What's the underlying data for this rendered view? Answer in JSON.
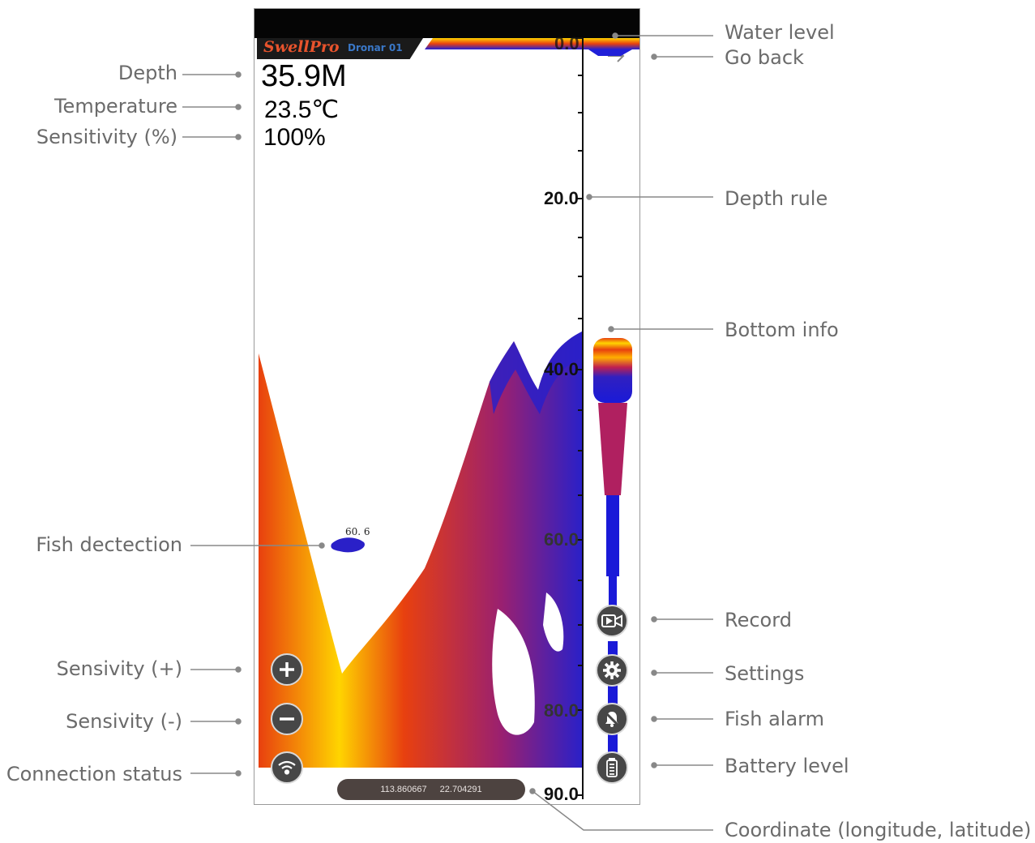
{
  "app": {
    "brand": "SwellPro",
    "device": "Dronar 01"
  },
  "readings": {
    "depth": "35.9M",
    "temperature": "23.5℃",
    "sensitivity": "100%"
  },
  "ruler": {
    "ticks": [
      "0.0",
      "20.0",
      "40.0",
      "60.0",
      "80.0",
      "90.0"
    ]
  },
  "fish": {
    "depth_label": "60. 6"
  },
  "coordinates": {
    "longitude": "113.860667",
    "latitude": "22.704291"
  },
  "annotations": {
    "depth": "Depth",
    "temperature": "Temperature",
    "sensitivity": "Sensitivity (%)",
    "fish_detection": "Fish dectection",
    "sensitivity_plus": "Sensivity (+)",
    "sensitivity_minus": "Sensivity (-)",
    "connection_status": "Connection status",
    "water_level": "Water level",
    "go_back": "Go back",
    "depth_rule": "Depth rule",
    "bottom_info": "Bottom info",
    "record": "Record",
    "settings": "Settings",
    "fish_alarm": "Fish alarm",
    "battery_level": "Battery level",
    "coordinate": "Coordinate (longitude, latitude)"
  },
  "icons": {
    "go_back": "arrow-right-icon",
    "sens_plus": "plus-icon",
    "sens_minus": "minus-icon",
    "connection": "wifi-icon",
    "record": "video-camera-icon",
    "settings": "gear-icon",
    "fish_alarm": "bell-off-icon",
    "battery": "battery-icon"
  },
  "colors": {
    "brand": "#e8532c",
    "device": "#3a78c8",
    "sonar_yellow": "#ffe000",
    "sonar_red": "#e8400f",
    "sonar_blue": "#1a1ad8",
    "annotation_text": "#6b6b6b"
  }
}
